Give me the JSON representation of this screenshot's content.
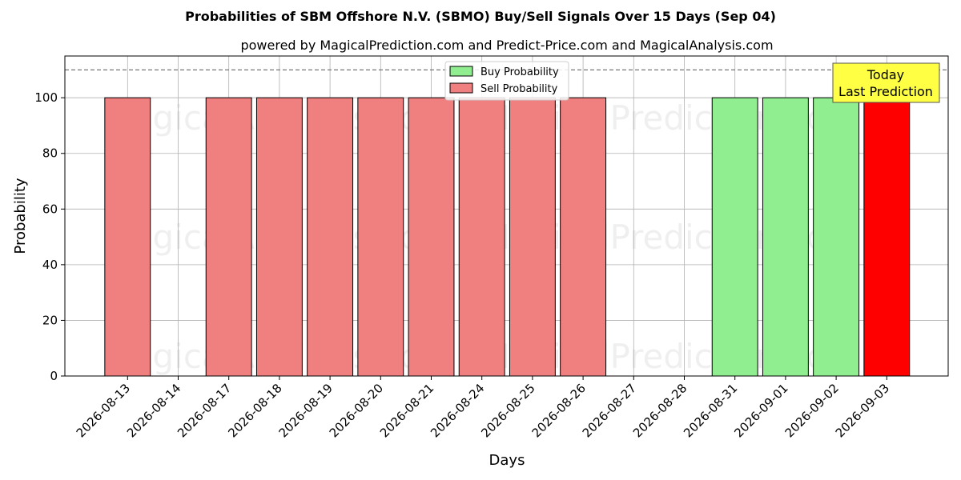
{
  "chart_data": {
    "type": "bar",
    "title": "Probabilities of SBM Offshore N.V. (SBMO) Buy/Sell Signals Over 15 Days (Sep 04)",
    "subtitle": "powered by MagicalPrediction.com and Predict-Price.com and MagicalAnalysis.com",
    "xlabel": "Days",
    "ylabel": "Probability",
    "ylim": [
      0,
      115
    ],
    "yticks": [
      0,
      20,
      40,
      60,
      80,
      100
    ],
    "reference_line": 110,
    "grid": true,
    "legend_position": "top-center",
    "categories": [
      "2026-08-13",
      "2026-08-14",
      "2026-08-17",
      "2026-08-18",
      "2026-08-19",
      "2026-08-20",
      "2026-08-21",
      "2026-08-24",
      "2026-08-25",
      "2026-08-26",
      "2026-08-27",
      "2026-08-28",
      "2026-08-31",
      "2026-09-01",
      "2026-09-02",
      "2026-09-03"
    ],
    "series": [
      {
        "name": "Buy Probability",
        "color": "#90ee90",
        "values": [
          0,
          0,
          0,
          0,
          0,
          0,
          0,
          0,
          0,
          0,
          0,
          0,
          100,
          100,
          100,
          0
        ]
      },
      {
        "name": "Sell Probability",
        "color": "#f08080",
        "values": [
          100,
          0,
          100,
          100,
          100,
          100,
          100,
          100,
          100,
          100,
          0,
          0,
          0,
          0,
          0,
          100
        ]
      }
    ],
    "highlight": {
      "category": "2026-09-03",
      "color": "#ff0000"
    },
    "annotation": {
      "lines": [
        "Today",
        "Last Prediction"
      ],
      "background": "#ffff44"
    },
    "watermarks": [
      "MagicalAnalysis.com",
      "MagicalPrediction.com"
    ]
  }
}
